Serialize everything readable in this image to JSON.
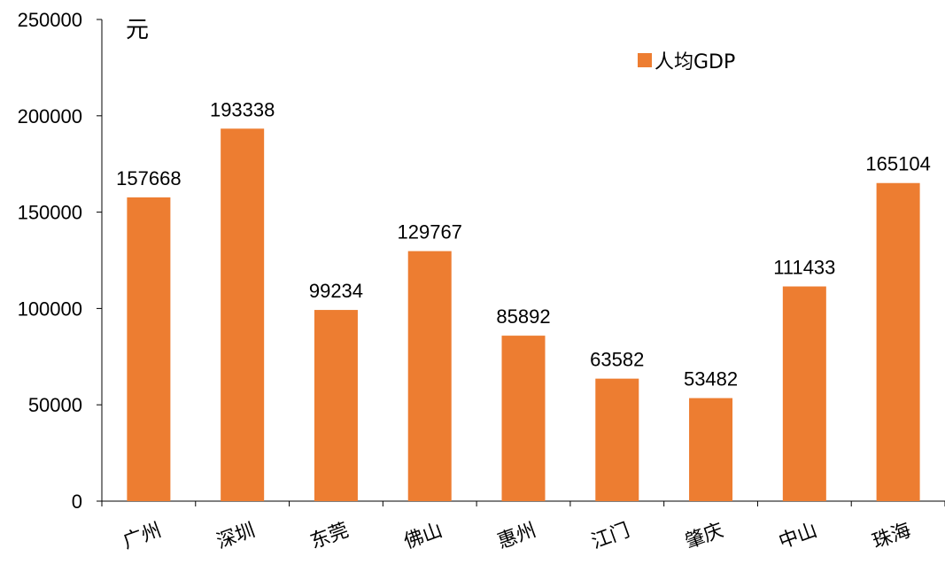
{
  "chart_data": {
    "type": "bar",
    "unit_label": "元",
    "categories": [
      "广州",
      "深圳",
      "东莞",
      "佛山",
      "惠州",
      "江门",
      "肇庆",
      "中山",
      "珠海"
    ],
    "series": [
      {
        "name": "人均GDP",
        "values": [
          157668,
          193338,
          99234,
          129767,
          85892,
          63582,
          53482,
          111433,
          165104
        ],
        "color": "#ED7D31"
      }
    ],
    "ylim": [
      0,
      250000
    ],
    "yticks": [
      0,
      50000,
      100000,
      150000,
      200000,
      250000
    ],
    "grid": false,
    "legend_position": "top-right",
    "data_labels": true
  }
}
